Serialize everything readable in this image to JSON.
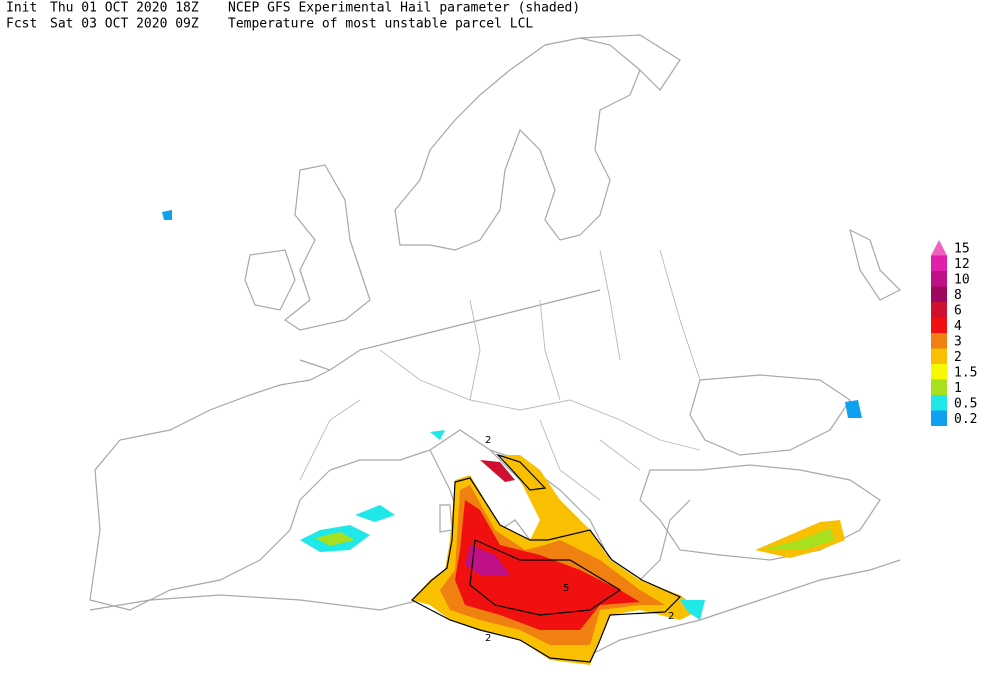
{
  "header": {
    "init_label": "Init",
    "init_time": "Thu 01 OCT 2020 18Z",
    "fcst_label": "Fcst",
    "fcst_time": "Sat 03 OCT 2020 09Z",
    "shaded_title": "NCEP GFS Experimental Hail parameter (shaded)",
    "contour_title": "Temperature of most unstable parcel LCL"
  },
  "legend": {
    "levels": [
      {
        "label": 15,
        "color": "#f060c0"
      },
      {
        "label": 12,
        "color": "#e020a8"
      },
      {
        "label": 10,
        "color": "#c01088"
      },
      {
        "label": 8,
        "color": "#a00860"
      },
      {
        "label": 6,
        "color": "#d01030"
      },
      {
        "label": 4,
        "color": "#f01010"
      },
      {
        "label": 3,
        "color": "#f08010"
      },
      {
        "label": 2,
        "color": "#f8c000"
      },
      {
        "label": 1.5,
        "color": "#f8f800"
      },
      {
        "label": 1,
        "color": "#a8e020"
      },
      {
        "label": 0.5,
        "color": "#20e8e8"
      },
      {
        "label": 0.2,
        "color": "#10a0f0"
      }
    ]
  },
  "map_labels": [
    "2",
    "5",
    "2",
    "2"
  ]
}
